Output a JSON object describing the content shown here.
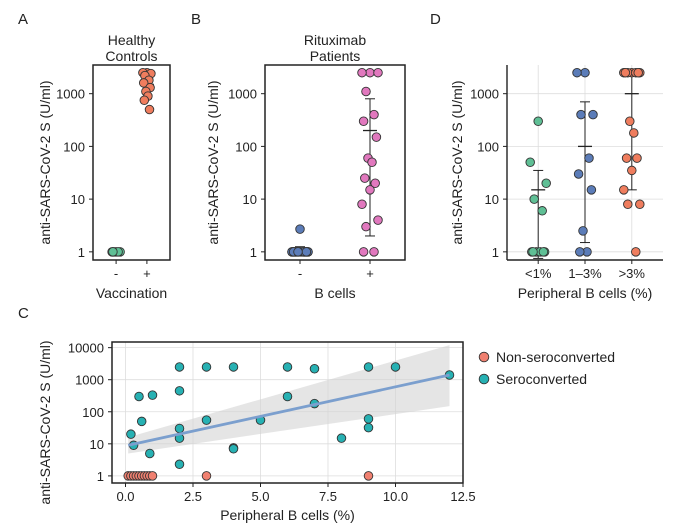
{
  "colors": {
    "green": "#5fbf95",
    "orange": "#ef7d5e",
    "steelblue": "#5b7cb8",
    "pink": "#e178be",
    "red": "#f08070",
    "teal": "#27b1b3",
    "fit": "#7b9fce",
    "band": "#d4d4d4"
  },
  "chart_data": [
    {
      "panel": "A",
      "type": "scatter",
      "title": "Healthy Controls",
      "title_lines": [
        "Healthy",
        "Controls"
      ],
      "xlabel": "Vaccination",
      "ylabel": "anti-SARS-CoV-2 S (U/ml)",
      "categories": [
        "-",
        "+"
      ],
      "yscale": "log",
      "yticks": [
        1,
        10,
        100,
        1000
      ],
      "ytick_labels": [
        "1",
        "10",
        "100",
        "1000"
      ],
      "ylim": [
        0.7,
        3500
      ],
      "series": [
        {
          "category": "-",
          "color": "green",
          "values": [
            1,
            1,
            1,
            1,
            1,
            1
          ],
          "summary": {
            "mean": 1,
            "low": 0.95,
            "high": 1.05
          }
        },
        {
          "category": "+",
          "color": "orange",
          "values": [
            2500,
            2500,
            2400,
            2200,
            1800,
            1600,
            1300,
            1100,
            900,
            750,
            500
          ],
          "summary": {
            "mean": 1500,
            "low": 800,
            "high": 2500
          }
        }
      ]
    },
    {
      "panel": "B",
      "type": "scatter",
      "title": "Rituximab Patients",
      "title_lines": [
        "Rituximab",
        "Patients"
      ],
      "xlabel": "B cells",
      "ylabel": "anti-SARS-CoV-2 S (U/ml)",
      "categories": [
        "-",
        "+"
      ],
      "yscale": "log",
      "yticks": [
        1,
        10,
        100,
        1000
      ],
      "ytick_labels": [
        "1",
        "10",
        "100",
        "1000"
      ],
      "ylim": [
        0.7,
        3500
      ],
      "series": [
        {
          "category": "-",
          "color": "steelblue",
          "values": [
            2.7,
            1,
            1,
            1,
            1,
            1,
            1,
            1,
            1,
            1,
            1,
            1,
            1,
            1,
            1,
            1,
            1,
            1,
            1
          ],
          "summary": {
            "mean": 1.1,
            "low": 0.95,
            "high": 1.25
          }
        },
        {
          "category": "+",
          "color": "pink",
          "values": [
            2500,
            2500,
            2500,
            1100,
            400,
            300,
            150,
            60,
            50,
            25,
            20,
            15,
            8,
            4,
            3,
            1,
            1
          ],
          "summary": {
            "mean": 200,
            "low": 2,
            "high": 800
          }
        }
      ]
    },
    {
      "panel": "D",
      "type": "scatter",
      "xlabel": "Peripheral B cells (%)",
      "ylabel": "anti-SARS-CoV-2 S (U/ml)",
      "categories": [
        "<1%",
        "1–3%",
        ">3%"
      ],
      "yscale": "log",
      "yticks": [
        1,
        10,
        100,
        1000
      ],
      "ytick_labels": [
        "1",
        "10",
        "100",
        "1000"
      ],
      "ylim": [
        0.7,
        3500
      ],
      "series": [
        {
          "category": "<1%",
          "color": "green",
          "values": [
            300,
            50,
            20,
            10,
            6,
            1,
            1,
            1,
            1,
            1,
            1
          ],
          "summary": {
            "mean": 15,
            "low": 0.75,
            "high": 35
          }
        },
        {
          "category": "1–3%",
          "color": "steelblue",
          "values": [
            2500,
            2500,
            400,
            400,
            60,
            30,
            15,
            2.5,
            1,
            1
          ],
          "summary": {
            "mean": 100,
            "low": 1.5,
            "high": 700
          }
        },
        {
          "category": ">3%",
          "color": "orange",
          "values": [
            2500,
            2500,
            2500,
            2500,
            2500,
            2500,
            2500,
            300,
            180,
            60,
            60,
            35,
            15,
            8,
            8,
            1
          ],
          "summary": {
            "mean": 1000,
            "low": 15,
            "high": 2500
          }
        }
      ]
    },
    {
      "panel": "C",
      "type": "scatter",
      "xlabel": "Peripheral B cells (%)",
      "ylabel": "anti-SARS-CoV-2 S (U/ml)",
      "xscale": "linear",
      "yscale": "log",
      "xlim": [
        -0.5,
        12.5
      ],
      "ylim": [
        0.6,
        15000
      ],
      "xticks": [
        0,
        2.5,
        5,
        7.5,
        10,
        12.5
      ],
      "xtick_labels": [
        "0.0",
        "2.5",
        "5.0",
        "7.5",
        "10.0",
        "12.5"
      ],
      "yticks": [
        1,
        10,
        100,
        1000,
        10000
      ],
      "ytick_labels": [
        "1",
        "10",
        "100",
        "1000",
        "10000"
      ],
      "grid": true,
      "legend_position": "right",
      "series": [
        {
          "name": "Non-seroconverted",
          "color": "red",
          "points": [
            [
              0.1,
              1
            ],
            [
              0.2,
              1
            ],
            [
              0.3,
              1
            ],
            [
              0.4,
              1
            ],
            [
              0.5,
              1
            ],
            [
              0.6,
              1
            ],
            [
              0.7,
              1
            ],
            [
              0.8,
              1
            ],
            [
              0.9,
              1
            ],
            [
              1.0,
              1
            ],
            [
              3.0,
              1
            ],
            [
              9.0,
              1
            ]
          ]
        },
        {
          "name": "Seroconverted",
          "color": "teal",
          "points": [
            [
              0.2,
              20
            ],
            [
              0.3,
              9
            ],
            [
              0.5,
              300
            ],
            [
              0.6,
              50
            ],
            [
              0.9,
              5
            ],
            [
              1.0,
              330
            ],
            [
              2.0,
              2500
            ],
            [
              2.0,
              450
            ],
            [
              2.0,
              30
            ],
            [
              2.0,
              15
            ],
            [
              2.0,
              2.3
            ],
            [
              3.0,
              2500
            ],
            [
              3.0,
              55
            ],
            [
              4.0,
              2500
            ],
            [
              4.0,
              7.5
            ],
            [
              4.0,
              7
            ],
            [
              5.0,
              55
            ],
            [
              6.0,
              2500
            ],
            [
              6.0,
              300
            ],
            [
              7.0,
              2200
            ],
            [
              7.0,
              180
            ],
            [
              8.0,
              15
            ],
            [
              9.0,
              2500
            ],
            [
              9.0,
              60
            ],
            [
              9.0,
              32
            ],
            [
              10.0,
              2500
            ],
            [
              12.0,
              1400
            ]
          ]
        }
      ],
      "fit": {
        "x": [
          0.1,
          12.0
        ],
        "y": [
          9,
          1400
        ],
        "band_low": [
          5,
          150
        ],
        "band_high": [
          16,
          12000
        ]
      }
    }
  ]
}
